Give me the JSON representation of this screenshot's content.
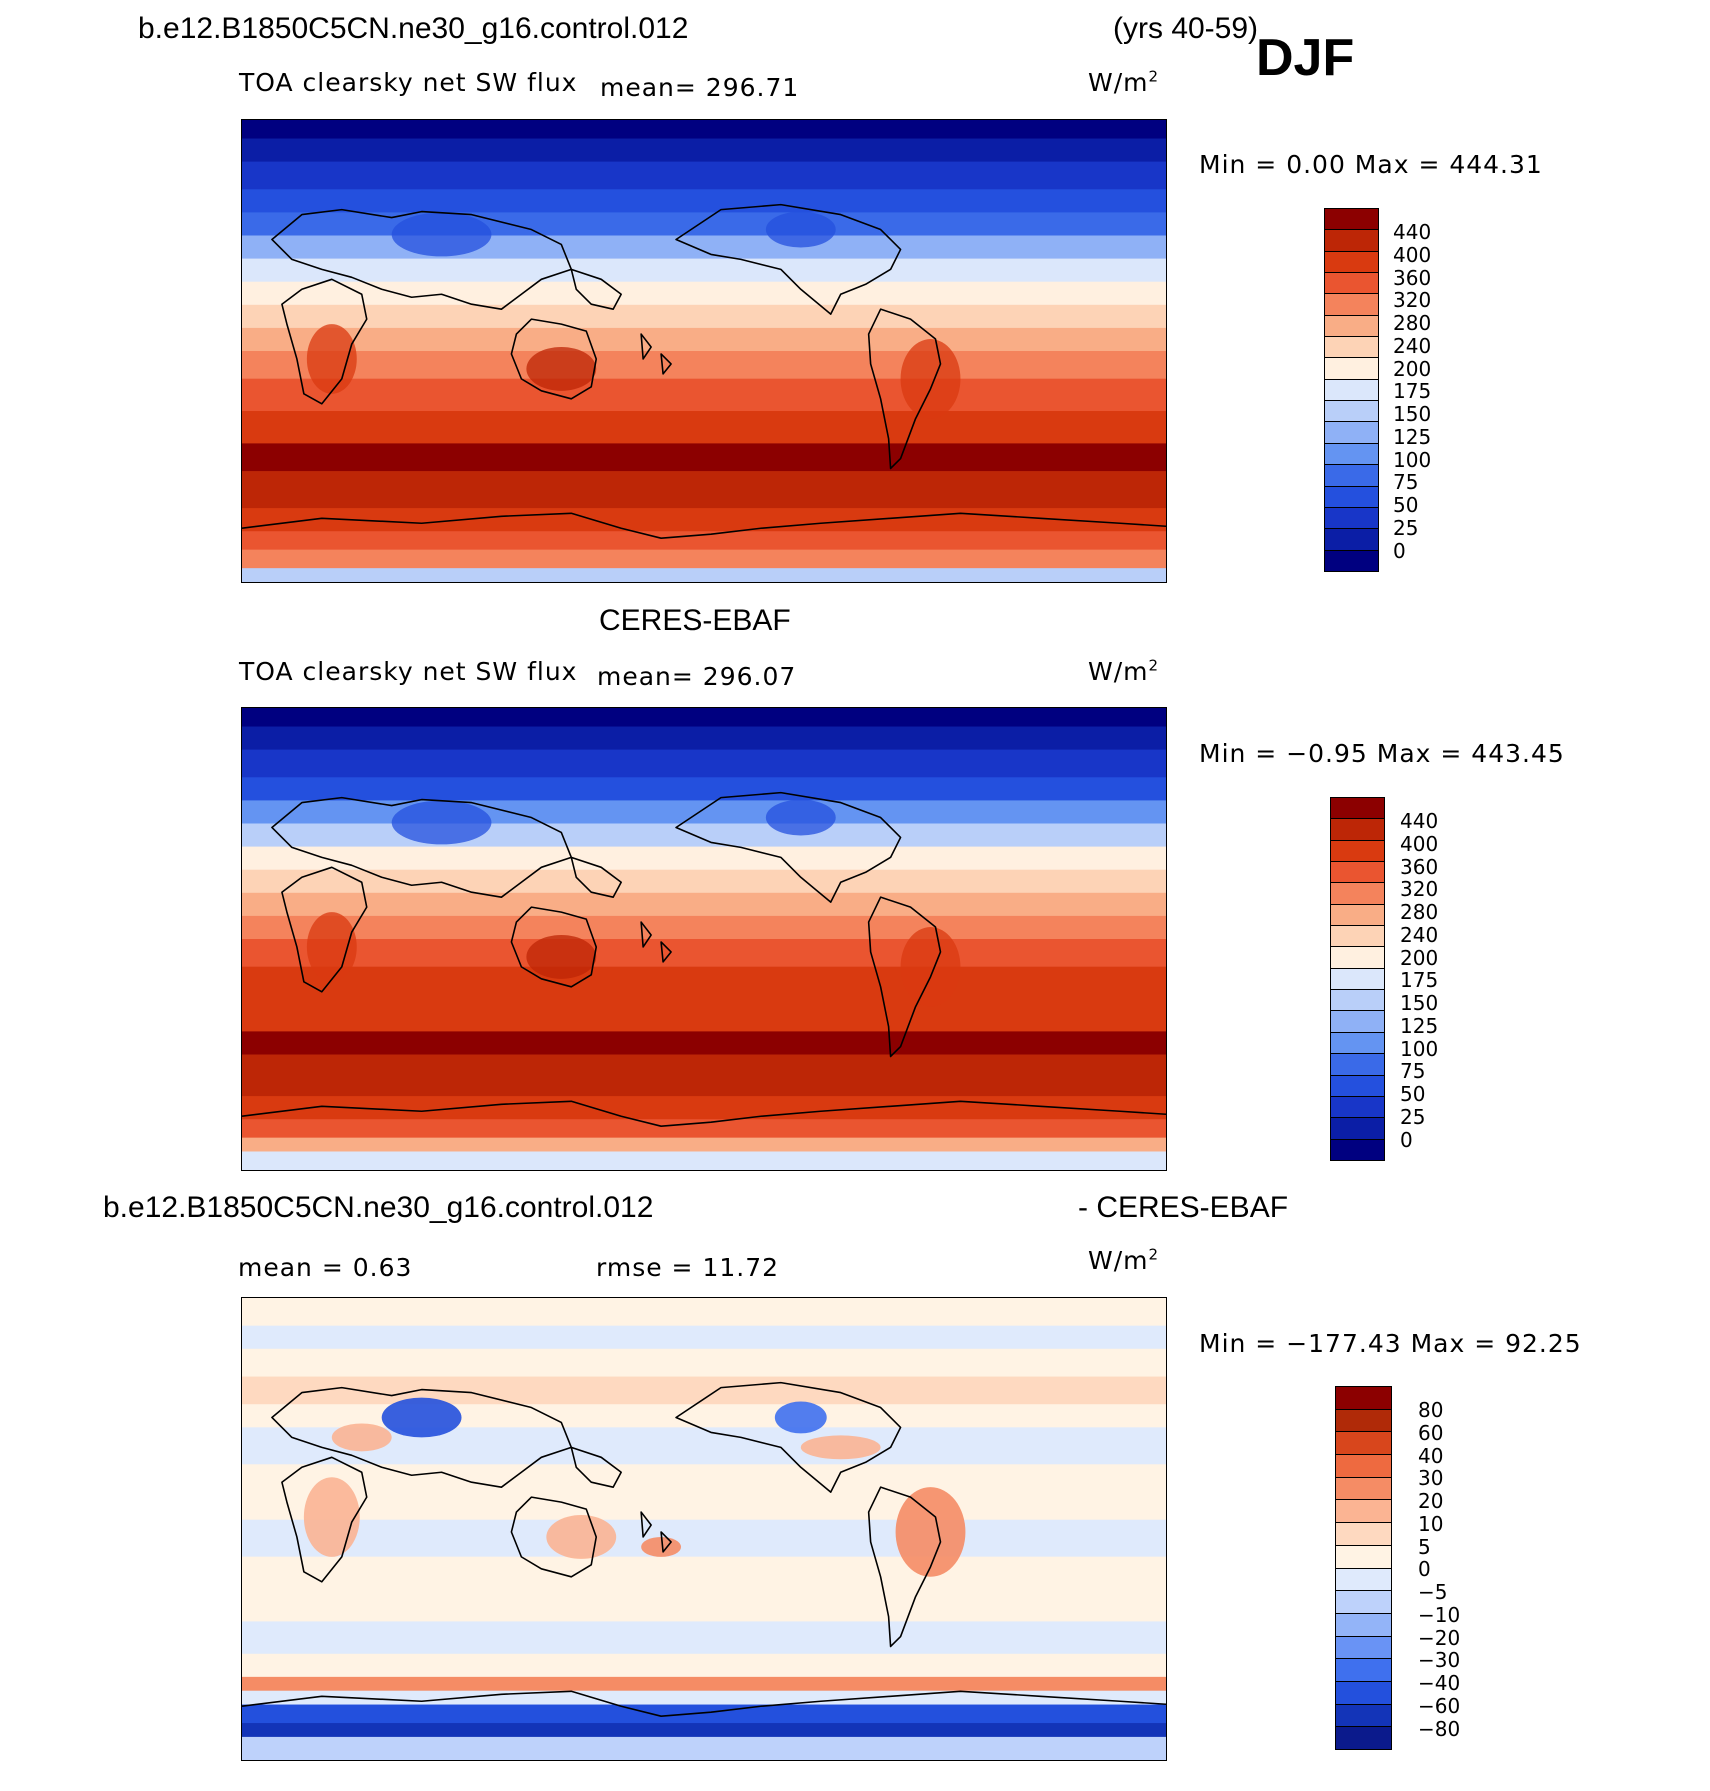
{
  "header": {
    "case_name": "b.e12.B1850C5CN.ne30_g16.control.012",
    "years": "(yrs 40-59)",
    "season": "DJF"
  },
  "colors": {
    "abs_scale": [
      "#000080",
      "#0b1ea6",
      "#1836c8",
      "#2450de",
      "#3a6ae8",
      "#6494f2",
      "#8fb1f6",
      "#b9cff9",
      "#dbe7fb",
      "#fff0e0",
      "#fdd3b6",
      "#f9ad86",
      "#f4835c",
      "#ea5530",
      "#d93a10",
      "#bd2606",
      "#8c0000"
    ],
    "diff_scale": [
      "#0b1a8c",
      "#1334b8",
      "#2350dd",
      "#3f70ee",
      "#6993f5",
      "#93b4f8",
      "#bed2fb",
      "#dfeafc",
      "#fff3e4",
      "#fed9c0",
      "#fbb493",
      "#f58c65",
      "#ee6a40",
      "#d8461c",
      "#b02a08",
      "#8c0000"
    ],
    "coast": "#000000"
  },
  "panels": [
    {
      "id": "model",
      "variable": "TOA clearsky net SW flux",
      "mean_label": "mean= 296.71",
      "units": "W/m",
      "units_sup": "2",
      "minmax": "Min =    0.00 Max = 444.31",
      "colorbar_labels": [
        "440",
        "400",
        "360",
        "320",
        "280",
        "240",
        "200",
        "175",
        "150",
        "125",
        "100",
        "75",
        "50",
        "25",
        "0"
      ]
    },
    {
      "id": "obs",
      "title": "CERES-EBAF",
      "variable": "TOA clearsky net SW flux",
      "mean_label": "mean= 296.07",
      "units": "W/m",
      "units_sup": "2",
      "minmax": "Min =  −0.95 Max = 443.45",
      "colorbar_labels": [
        "440",
        "400",
        "360",
        "320",
        "280",
        "240",
        "200",
        "175",
        "150",
        "125",
        "100",
        "75",
        "50",
        "25",
        "0"
      ]
    },
    {
      "id": "diff",
      "title_left": "b.e12.B1850C5CN.ne30_g16.control.012",
      "title_right": "- CERES-EBAF",
      "mean_label": "mean =    0.63",
      "rmse_label": "rmse =   11.72",
      "units": "W/m",
      "units_sup": "2",
      "minmax": "Min = −177.43 Max =   92.25",
      "colorbar_labels": [
        "80",
        "60",
        "40",
        "30",
        "20",
        "10",
        "5",
        "0",
        "−5",
        "−10",
        "−20",
        "−30",
        "−40",
        "−60",
        "−80"
      ]
    }
  ]
}
